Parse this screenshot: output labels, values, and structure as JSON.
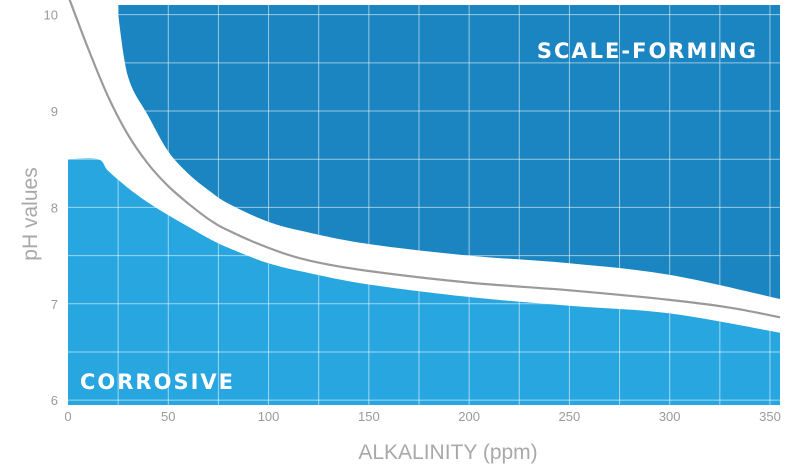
{
  "chart_data": {
    "type": "area",
    "title": "",
    "xlabel": "ALKALINITY (ppm)",
    "ylabel": "pH values",
    "xlim": [
      0,
      355
    ],
    "ylim": [
      5.95,
      10.1
    ],
    "xticks": [
      "0",
      "50",
      "100",
      "150",
      "200",
      "250",
      "300",
      "350"
    ],
    "yticks": [
      "6",
      "7",
      "8",
      "9",
      "10"
    ],
    "grid": true,
    "regions": [
      {
        "name": "SCALE-FORMING",
        "color": "#1a85c0",
        "lower_boundary": {
          "x": [
            25,
            30,
            40,
            50,
            60,
            70,
            80,
            100,
            120,
            150,
            200,
            250,
            300,
            355
          ],
          "y": [
            10.0,
            9.35,
            8.95,
            8.58,
            8.35,
            8.18,
            8.04,
            7.85,
            7.74,
            7.62,
            7.5,
            7.42,
            7.3,
            7.05
          ]
        }
      },
      {
        "name": "CORROSIVE",
        "color": "#28a6e0",
        "upper_boundary": {
          "x": [
            0,
            15,
            20,
            30,
            40,
            50,
            60,
            70,
            80,
            100,
            120,
            150,
            200,
            250,
            300,
            355
          ],
          "y": [
            8.5,
            8.5,
            8.38,
            8.2,
            8.05,
            7.92,
            7.8,
            7.68,
            7.58,
            7.42,
            7.32,
            7.2,
            7.07,
            6.98,
            6.9,
            6.7
          ]
        }
      }
    ],
    "divider_curve": {
      "color": "#9a9a9a",
      "x": [
        0,
        10,
        20,
        30,
        40,
        50,
        60,
        70,
        80,
        100,
        120,
        150,
        200,
        250,
        300,
        330,
        355
      ],
      "y": [
        10.2,
        9.65,
        9.15,
        8.75,
        8.45,
        8.22,
        8.04,
        7.88,
        7.76,
        7.58,
        7.45,
        7.34,
        7.22,
        7.14,
        7.04,
        6.96,
        6.86
      ]
    }
  }
}
